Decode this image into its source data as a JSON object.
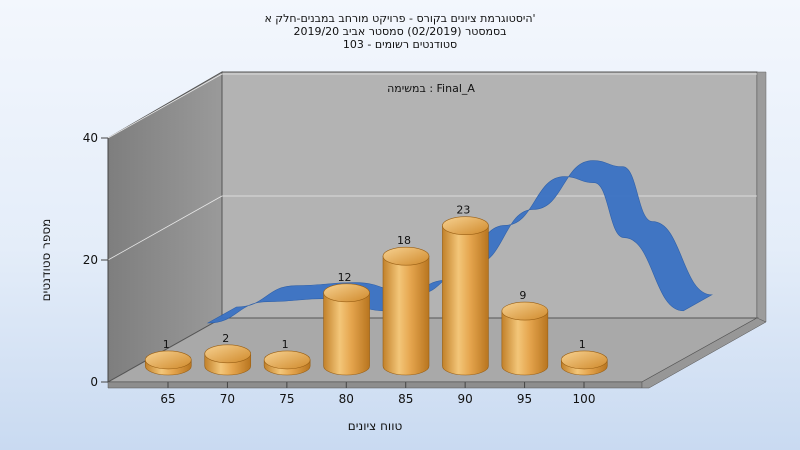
{
  "chart_data": {
    "type": "bar",
    "title_lines": [
      "היסטוגרמת ציונים בקורס - פרויקט מורחב במבנים-חלק א'",
      "בסמסטר  (02/2019)  סמסטר אביב 2019/20",
      "סטודנטים רשומים - 103"
    ],
    "annotation": "במשימה : Final_A",
    "xlabel": "טווח ציונים",
    "ylabel": "מספר סטודנטים",
    "categories": [
      "65",
      "70",
      "75",
      "80",
      "85",
      "90",
      "95",
      "100"
    ],
    "bars": [
      {
        "x": 62.5,
        "value": 1
      },
      {
        "x": 67.5,
        "value": 2
      },
      {
        "x": 72.5,
        "value": 1
      },
      {
        "x": 77.5,
        "value": 12
      },
      {
        "x": 82.5,
        "value": 18
      },
      {
        "x": 87.5,
        "value": 23
      },
      {
        "x": 92.5,
        "value": 9
      },
      {
        "x": 97.5,
        "value": 1
      }
    ],
    "y_ticks": [
      0,
      20,
      40
    ],
    "ylim": [
      0,
      40
    ],
    "curve": {
      "type": "normal-distribution",
      "color": "#3a72c4",
      "points": [
        [
          65,
          6
        ],
        [
          70,
          9.5
        ],
        [
          75,
          10
        ],
        [
          80,
          8
        ],
        [
          85,
          13
        ],
        [
          90,
          22
        ],
        [
          95,
          30
        ],
        [
          97.5,
          29
        ],
        [
          100,
          20
        ],
        [
          105,
          8
        ]
      ]
    },
    "colors": {
      "bar": "#e2a24b",
      "bar_dark": "#b9761d",
      "bar_light": "#f6d18e",
      "back_wall": "#b2b2b2",
      "side_wall": "#8a8a8a",
      "floor": "#a6a6a6"
    },
    "grid": true
  }
}
